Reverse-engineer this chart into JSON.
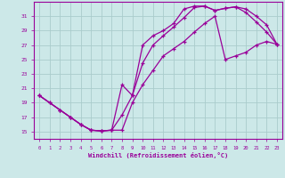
{
  "xlabel": "Windchill (Refroidissement éolien,°C)",
  "bg_color": "#cce8e8",
  "grid_color": "#aacccc",
  "line_color": "#990099",
  "xlim": [
    -0.5,
    23.5
  ],
  "ylim": [
    14,
    33
  ],
  "xticks": [
    0,
    1,
    2,
    3,
    4,
    5,
    6,
    7,
    8,
    9,
    10,
    11,
    12,
    13,
    14,
    15,
    16,
    17,
    18,
    19,
    20,
    21,
    22,
    23
  ],
  "yticks": [
    15,
    17,
    19,
    21,
    23,
    25,
    27,
    29,
    31
  ],
  "line1_x": [
    0,
    1,
    2,
    3,
    4,
    5,
    6,
    7,
    8,
    9,
    10,
    11,
    12,
    13,
    14,
    15,
    16,
    17,
    18,
    19,
    20,
    21,
    22,
    23
  ],
  "line1_y": [
    20,
    19,
    18,
    17,
    16,
    15.2,
    15.1,
    15.2,
    21.5,
    20,
    27,
    28.3,
    29,
    30,
    32,
    32.4,
    32.4,
    31.8,
    32.1,
    32.3,
    32,
    31,
    29.8,
    27.1
  ],
  "line2_x": [
    0,
    1,
    2,
    3,
    4,
    5,
    6,
    7,
    8,
    9,
    10,
    11,
    12,
    13,
    14,
    15,
    16,
    17,
    18,
    19,
    20,
    21,
    22,
    23
  ],
  "line2_y": [
    20,
    19,
    18,
    17,
    16,
    15.2,
    15.1,
    15.2,
    17.3,
    20,
    24.5,
    27,
    28.3,
    29.5,
    30.8,
    32.2,
    32.4,
    31.8,
    32.1,
    32.3,
    31.5,
    30.2,
    28.8,
    27.1
  ],
  "line3_x": [
    0,
    2,
    3,
    4,
    5,
    6,
    7,
    8,
    9,
    10,
    11,
    12,
    13,
    14,
    15,
    16,
    17,
    18,
    19,
    20,
    21,
    22,
    23
  ],
  "line3_y": [
    20,
    18,
    17,
    16,
    15.2,
    15.1,
    15.2,
    15.2,
    19,
    21.5,
    23.5,
    25.5,
    26.5,
    27.5,
    28.8,
    30,
    31,
    25,
    25.5,
    26,
    27,
    27.5,
    27.1
  ]
}
